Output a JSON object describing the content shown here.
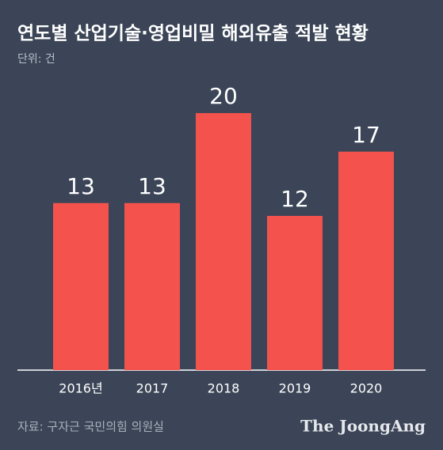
{
  "chart_data": {
    "type": "bar",
    "title": "연도별 산업기술·영업비밀 해외유출 적발 현황",
    "subtitle": "단위: 건",
    "categories": [
      "2016년",
      "2017",
      "2018",
      "2019",
      "2020"
    ],
    "values": [
      13,
      13,
      20,
      12,
      17
    ],
    "color": "#f4524d",
    "source": "자료: 구자근 국민의힘 의원실",
    "logo": "The JoongAng"
  }
}
